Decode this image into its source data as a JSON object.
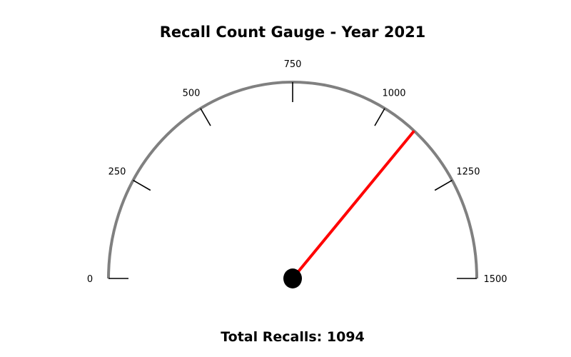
{
  "chart_data": {
    "type": "gauge",
    "title": "Recall Count Gauge - Year 2021",
    "min": 0,
    "max": 1500,
    "ticks": [
      0,
      250,
      500,
      750,
      1000,
      1250,
      1500
    ],
    "tick_labels": [
      "0",
      "250",
      "500",
      "750",
      "1000",
      "1250",
      "1500"
    ],
    "value": 1094,
    "value_label": "Total Recalls: 1094",
    "colors": {
      "arc": "#808080",
      "needle": "#ff0000",
      "hub": "#000000",
      "tick": "#000000"
    }
  }
}
